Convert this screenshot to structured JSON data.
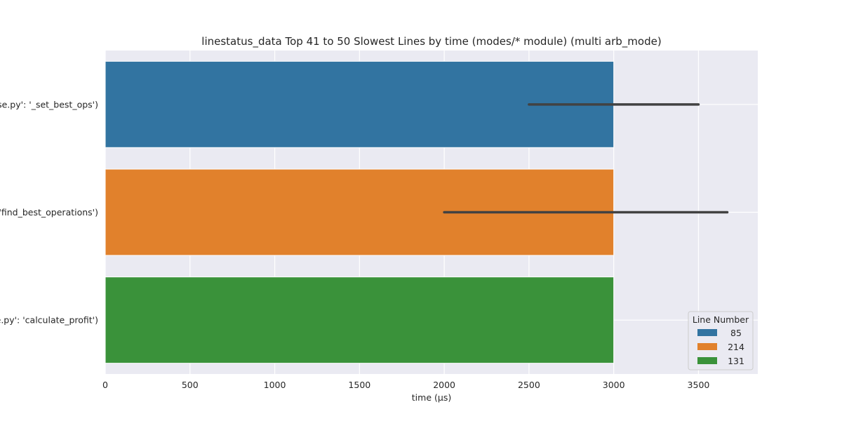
{
  "chart_data": {
    "type": "bar",
    "orientation": "horizontal",
    "title": "linestatus_data Top 41 to 50 Slowest Lines by time (modes/* module) (multi arb_mode)",
    "xlabel": "time (µs)",
    "ylabel": "",
    "xlim": [
      0,
      3850
    ],
    "xticks": [
      0,
      500,
      1000,
      1500,
      2000,
      2500,
      3000,
      3500
    ],
    "categories": [
      "se.py': '_set_best_ops')",
      "'find_best_operations')",
      "e.py': 'calculate_profit')"
    ],
    "values": [
      3000,
      3000,
      3000
    ],
    "error_bars": [
      [
        2500,
        3500
      ],
      [
        2000,
        3670
      ],
      [
        3000,
        3000
      ]
    ],
    "colors": [
      "#3274a1",
      "#e1812c",
      "#3a923a"
    ],
    "grid": true,
    "legend": {
      "title": "Line Number",
      "placement": "lower-right",
      "entries": [
        {
          "label": "85",
          "color": "#3274a1"
        },
        {
          "label": "214",
          "color": "#e1812c"
        },
        {
          "label": "131",
          "color": "#3a923a"
        }
      ]
    }
  }
}
